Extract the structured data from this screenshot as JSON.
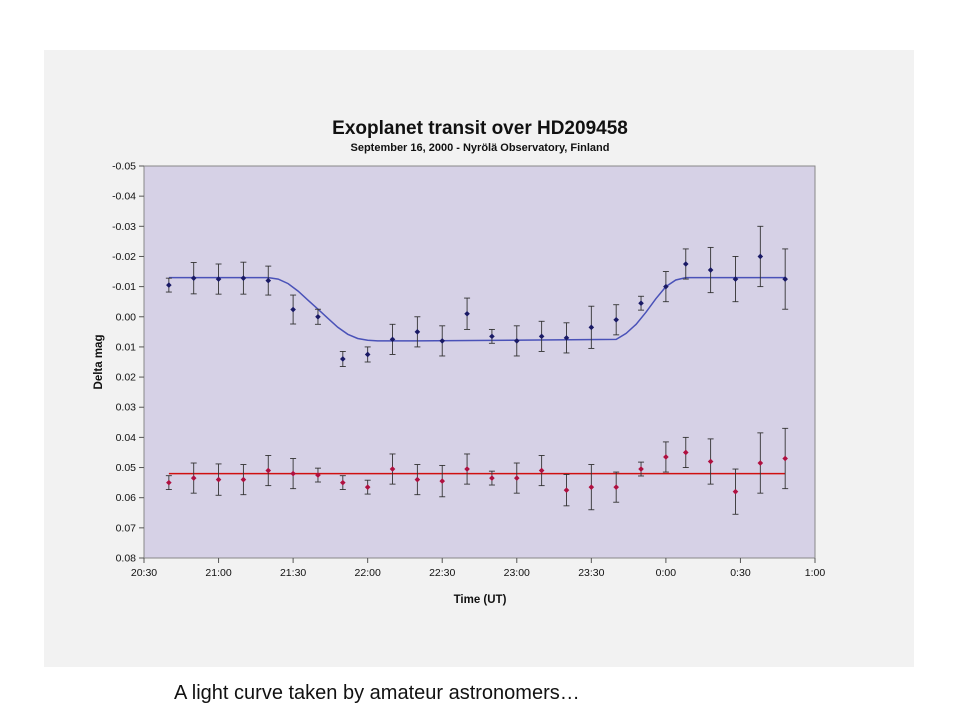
{
  "slide": {
    "background": "#f2f2f2",
    "caption": "A light curve taken by amateur astronomers…"
  },
  "chart_data": {
    "type": "scatter",
    "title": "Exoplanet transit over HD209458",
    "subtitle": "September 16, 2000 - Nyrölä Observatory, Finland",
    "xlabel": "Time (UT)",
    "ylabel": "Delta mag",
    "x_tick_labels": [
      "20:30",
      "21:00",
      "21:30",
      "22:00",
      "22:30",
      "23:00",
      "23:30",
      "0:00",
      "0:30",
      "1:00"
    ],
    "x_ticks_minutes": [
      1230,
      1260,
      1290,
      1320,
      1350,
      1380,
      1410,
      1440,
      1470,
      1500
    ],
    "y_tick_labels": [
      "-0.05",
      "-0.04",
      "-0.03",
      "-0.02",
      "-0.01",
      "0.00",
      "0.01",
      "0.02",
      "0.03",
      "0.04",
      "0.05",
      "0.06",
      "0.07",
      "0.08"
    ],
    "xlim_minutes": [
      1230,
      1500
    ],
    "ylim": [
      -0.05,
      0.08
    ],
    "y_inverted": true,
    "grid": false,
    "plot_background": "#d6d1e6",
    "series": [
      {
        "color": "#1a1a66",
        "x_minutes": [
          1240,
          1250,
          1260,
          1270,
          1280,
          1290,
          1300,
          1310,
          1320,
          1330,
          1340,
          1350,
          1360,
          1370,
          1380,
          1390,
          1400,
          1410,
          1420,
          1430,
          1440,
          1448,
          1458,
          1468,
          1478,
          1488
        ],
        "y": [
          -0.0105,
          -0.0128,
          -0.0125,
          -0.0128,
          -0.012,
          -0.0024,
          0.0,
          0.014,
          0.0125,
          0.0075,
          0.005,
          0.008,
          -0.001,
          0.0065,
          0.008,
          0.0065,
          0.007,
          0.0035,
          0.001,
          -0.0045,
          -0.01,
          -0.0175,
          -0.0155,
          -0.0125,
          -0.02,
          -0.0125
        ],
        "yerr": [
          0.0023,
          0.0052,
          0.005,
          0.0053,
          0.0048,
          0.0048,
          0.0025,
          0.0025,
          0.0025,
          0.005,
          0.005,
          0.005,
          0.0052,
          0.0023,
          0.005,
          0.005,
          0.005,
          0.007,
          0.005,
          0.0023,
          0.005,
          0.005,
          0.0075,
          0.0075,
          0.01,
          0.01
        ]
      },
      {
        "color": "#b01040",
        "x_minutes": [
          1240,
          1250,
          1260,
          1270,
          1280,
          1290,
          1300,
          1310,
          1320,
          1330,
          1340,
          1350,
          1360,
          1370,
          1380,
          1390,
          1400,
          1410,
          1420,
          1430,
          1440,
          1448,
          1458,
          1468,
          1478,
          1488
        ],
        "y": [
          0.055,
          0.0535,
          0.054,
          0.054,
          0.051,
          0.052,
          0.0525,
          0.055,
          0.0565,
          0.0505,
          0.054,
          0.0545,
          0.0505,
          0.0535,
          0.0535,
          0.051,
          0.0575,
          0.0565,
          0.0565,
          0.0505,
          0.0465,
          0.045,
          0.048,
          0.058,
          0.0485,
          0.047
        ],
        "yerr": [
          0.0023,
          0.005,
          0.0052,
          0.005,
          0.005,
          0.005,
          0.0023,
          0.0023,
          0.0023,
          0.005,
          0.005,
          0.0052,
          0.005,
          0.0023,
          0.005,
          0.005,
          0.0052,
          0.0075,
          0.005,
          0.0023,
          0.005,
          0.005,
          0.0075,
          0.0075,
          0.01,
          0.01
        ]
      }
    ],
    "fit_lines": [
      {
        "color": "#4a52b8",
        "x_minutes": [
          1240,
          1280,
          1284,
          1288,
          1292,
          1296,
          1300,
          1304,
          1308,
          1312,
          1316,
          1320,
          1324,
          1328,
          1332,
          1336,
          1340,
          1420,
          1424,
          1428,
          1432,
          1436,
          1440,
          1444,
          1448,
          1452,
          1488
        ],
        "y": [
          -0.013,
          -0.013,
          -0.0125,
          -0.011,
          -0.0085,
          -0.0055,
          -0.0025,
          0.0005,
          0.0035,
          0.0058,
          0.0072,
          0.0078,
          0.008,
          0.008,
          0.008,
          0.008,
          0.008,
          0.0075,
          0.0055,
          0.0025,
          -0.0015,
          -0.006,
          -0.01,
          -0.0122,
          -0.013,
          -0.013,
          -0.013
        ]
      },
      {
        "color": "#d01010",
        "x_minutes": [
          1240,
          1488
        ],
        "y": [
          0.052,
          0.052
        ]
      }
    ]
  }
}
